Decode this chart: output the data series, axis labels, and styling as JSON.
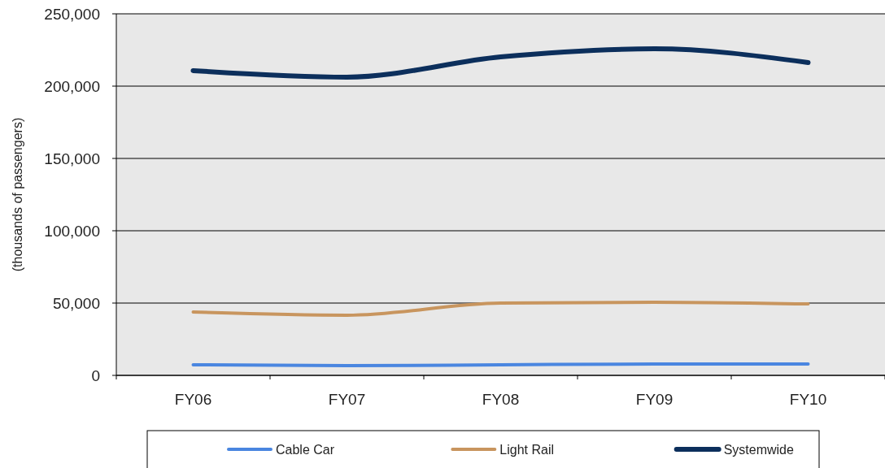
{
  "chart_data": {
    "type": "line",
    "ylabel": "(thousands of passengers)",
    "categories": [
      "FY06",
      "FY07",
      "FY08",
      "FY09",
      "FY10"
    ],
    "series": [
      {
        "name": "Cable Car",
        "color": "#4a86e0",
        "values": [
          7300,
          6700,
          7300,
          7900,
          7900
        ]
      },
      {
        "name": "Light Rail",
        "color": "#c8955e",
        "values": [
          43800,
          41600,
          50000,
          50600,
          49400
        ]
      },
      {
        "name": "Systemwide",
        "color": "#0c2f5c",
        "values": [
          210700,
          206200,
          220200,
          225800,
          216300
        ]
      }
    ],
    "ylim": [
      0,
      250000
    ],
    "yticks": [
      {
        "value": 0,
        "label": "0"
      },
      {
        "value": 50000,
        "label": "50,000"
      },
      {
        "value": 100000,
        "label": "100,000"
      },
      {
        "value": 150000,
        "label": "150,000"
      },
      {
        "value": 200000,
        "label": "200,000"
      },
      {
        "value": 250000,
        "label": "250,000"
      }
    ],
    "grid": "y",
    "legend": "bottom",
    "marker": "none",
    "line_style": "solid"
  }
}
